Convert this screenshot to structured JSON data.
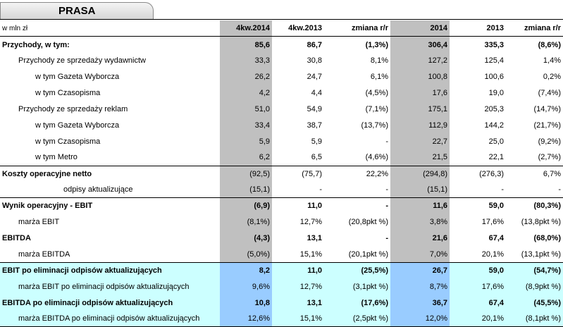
{
  "title": "PRASA",
  "header": {
    "unit": "w mln zł",
    "cols": [
      "4kw.2014",
      "4kw.2013",
      "zmiana r/r",
      "2014",
      "2013",
      "zmiana r/r"
    ]
  },
  "rows": [
    {
      "label": "Przychody, w tym:",
      "values": [
        "85,6",
        "86,7",
        "(1,3%)",
        "306,4",
        "335,3",
        "(8,6%)"
      ]
    },
    {
      "label": "Przychody ze sprzedaży wydawnictw",
      "values": [
        "33,3",
        "30,8",
        "8,1%",
        "127,2",
        "125,4",
        "1,4%"
      ]
    },
    {
      "label": "w tym Gazeta Wyborcza",
      "values": [
        "26,2",
        "24,7",
        "6,1%",
        "100,8",
        "100,6",
        "0,2%"
      ]
    },
    {
      "label": "w tym Czasopisma",
      "values": [
        "4,2",
        "4,4",
        "(4,5%)",
        "17,6",
        "19,0",
        "(7,4%)"
      ]
    },
    {
      "label": "Przychody ze sprzedaży reklam",
      "values": [
        "51,0",
        "54,9",
        "(7,1%)",
        "175,1",
        "205,3",
        "(14,7%)"
      ]
    },
    {
      "label": "w tym Gazeta Wyborcza",
      "values": [
        "33,4",
        "38,7",
        "(13,7%)",
        "112,9",
        "144,2",
        "(21,7%)"
      ]
    },
    {
      "label": "w tym Czasopisma",
      "values": [
        "5,9",
        "5,9",
        "-",
        "22,7",
        "25,0",
        "(9,2%)"
      ]
    },
    {
      "label": "w tym Metro",
      "values": [
        "6,2",
        "6,5",
        "(4,6%)",
        "21,5",
        "22,1",
        "(2,7%)"
      ]
    },
    {
      "label": "Koszty operacyjne netto",
      "values": [
        "(92,5)",
        "(75,7)",
        "22,2%",
        "(294,8)",
        "(276,3)",
        "6,7%"
      ]
    },
    {
      "label": "odpisy aktualizujące",
      "values": [
        "(15,1)",
        "-",
        "-",
        "(15,1)",
        "-",
        "-"
      ]
    },
    {
      "label": "Wynik operacyjny - EBIT",
      "values": [
        "(6,9)",
        "11,0",
        "-",
        "11,6",
        "59,0",
        "(80,3%)"
      ]
    },
    {
      "label": "marża EBIT",
      "values": [
        "(8,1%)",
        "12,7%",
        "(20,8pkt %)",
        "3,8%",
        "17,6%",
        "(13,8pkt %)"
      ]
    },
    {
      "label": "EBITDA",
      "values": [
        "(4,3)",
        "13,1",
        "-",
        "21,6",
        "67,4",
        "(68,0%)"
      ]
    },
    {
      "label": "marża EBITDA",
      "values": [
        "(5,0%)",
        "15,1%",
        "(20,1pkt %)",
        "7,0%",
        "20,1%",
        "(13,1pkt %)"
      ]
    },
    {
      "label": "EBIT po eliminacji odpisów aktualizujących",
      "values": [
        "8,2",
        "11,0",
        "(25,5%)",
        "26,7",
        "59,0",
        "(54,7%)"
      ]
    },
    {
      "label": "marża EBIT po eliminacji odpisów aktualizujących",
      "values": [
        "9,6%",
        "12,7%",
        "(3,1pkt %)",
        "8,7%",
        "17,6%",
        "(8,9pkt %)"
      ]
    },
    {
      "label": "EBITDA po eliminacji odpisów aktualizujących",
      "values": [
        "10,8",
        "13,1",
        "(17,6%)",
        "36,7",
        "67,4",
        "(45,5%)"
      ]
    },
    {
      "label": "marża EBITDA po eliminacji odpisów aktualizujących",
      "values": [
        "12,6%",
        "15,1%",
        "(2,5pkt %)",
        "12,0%",
        "20,1%",
        "(8,1pkt %)"
      ]
    }
  ]
}
